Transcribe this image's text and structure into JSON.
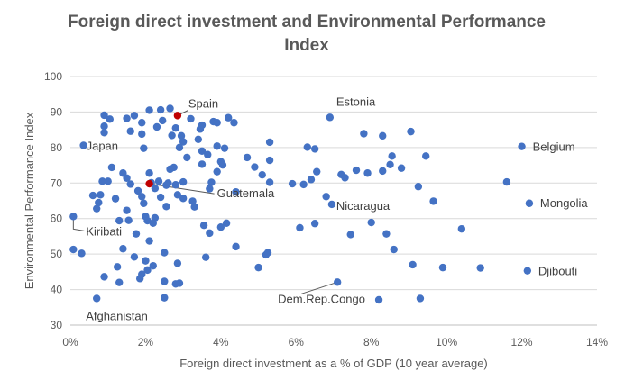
{
  "chart_data": {
    "type": "scatter",
    "title": "Foreign direct investment and Environmental Performance Index",
    "xlabel": "Foreign direct investment as a % of GDP (10 year average)",
    "ylabel": "Environmental Performance Index",
    "xlim": [
      0,
      14
    ],
    "ylim": [
      30,
      100
    ],
    "x_ticks": [
      "0%",
      "2%",
      "4%",
      "6%",
      "8%",
      "10%",
      "12%",
      "14%"
    ],
    "y_ticks": [
      "30",
      "40",
      "50",
      "60",
      "70",
      "80",
      "90",
      "100"
    ],
    "grid": "horizontal",
    "colors": {
      "points": "#4472c4",
      "highlight": "#c00000",
      "grid": "#d9d9d9",
      "text": "#595959"
    },
    "points": [
      [
        0.08,
        51.3
      ],
      [
        0.3,
        50.2
      ],
      [
        0.6,
        66.5
      ],
      [
        0.7,
        62.8
      ],
      [
        0.75,
        64.5
      ],
      [
        0.8,
        66.7
      ],
      [
        0.85,
        70.5
      ],
      [
        0.9,
        89.1
      ],
      [
        0.9,
        86.0
      ],
      [
        0.9,
        84.2
      ],
      [
        0.9,
        43.6
      ],
      [
        1.0,
        70.5
      ],
      [
        1.05,
        88.0
      ],
      [
        1.1,
        74.4
      ],
      [
        1.2,
        65.6
      ],
      [
        1.25,
        46.4
      ],
      [
        1.3,
        59.4
      ],
      [
        1.4,
        51.5
      ],
      [
        1.4,
        72.8
      ],
      [
        1.5,
        88.2
      ],
      [
        1.5,
        71.4
      ],
      [
        1.5,
        62.3
      ],
      [
        1.55,
        59.5
      ],
      [
        1.6,
        69.7
      ],
      [
        1.6,
        84.6
      ],
      [
        1.7,
        89.0
      ],
      [
        1.7,
        49.2
      ],
      [
        1.75,
        55.7
      ],
      [
        1.8,
        67.8
      ],
      [
        1.85,
        43.1
      ],
      [
        1.9,
        87.0
      ],
      [
        1.9,
        83.8
      ],
      [
        1.9,
        66.2
      ],
      [
        1.9,
        44.3
      ],
      [
        1.95,
        79.8
      ],
      [
        1.95,
        64.3
      ],
      [
        2.0,
        60.6
      ],
      [
        2.0,
        48.1
      ],
      [
        2.05,
        59.4
      ],
      [
        2.05,
        45.5
      ],
      [
        2.1,
        53.7
      ],
      [
        2.1,
        90.5
      ],
      [
        2.1,
        72.8
      ],
      [
        2.15,
        70.1
      ],
      [
        2.2,
        58.7
      ],
      [
        2.2,
        46.7
      ],
      [
        2.25,
        60.2
      ],
      [
        2.25,
        68.5
      ],
      [
        2.3,
        85.8
      ],
      [
        2.35,
        70.5
      ],
      [
        2.4,
        90.6
      ],
      [
        2.4,
        66.0
      ],
      [
        2.45,
        87.6
      ],
      [
        2.5,
        50.4
      ],
      [
        2.55,
        63.4
      ],
      [
        2.55,
        69.4
      ],
      [
        2.6,
        70.0
      ],
      [
        2.65,
        73.9
      ],
      [
        2.65,
        91.0
      ],
      [
        2.7,
        83.4
      ],
      [
        2.75,
        74.4
      ],
      [
        2.8,
        85.5
      ],
      [
        2.8,
        69.5
      ],
      [
        2.85,
        47.4
      ],
      [
        2.85,
        66.7
      ],
      [
        2.9,
        80.0
      ],
      [
        2.95,
        83.3
      ],
      [
        3.0,
        81.6
      ],
      [
        3.0,
        65.7
      ],
      [
        3.0,
        70.3
      ],
      [
        3.1,
        77.2
      ],
      [
        3.2,
        88.1
      ],
      [
        3.25,
        64.9
      ],
      [
        3.3,
        63.3
      ],
      [
        3.4,
        82.3
      ],
      [
        3.45,
        85.2
      ],
      [
        3.5,
        86.3
      ],
      [
        3.5,
        79.0
      ],
      [
        3.5,
        75.3
      ],
      [
        3.55,
        58.1
      ],
      [
        3.6,
        49.1
      ],
      [
        3.65,
        78.0
      ],
      [
        3.7,
        55.9
      ],
      [
        3.7,
        68.4
      ],
      [
        3.75,
        70.2
      ],
      [
        3.8,
        87.3
      ],
      [
        3.9,
        80.4
      ],
      [
        3.9,
        87.0
      ],
      [
        3.9,
        73.2
      ],
      [
        4.0,
        76.0
      ],
      [
        4.0,
        57.6
      ],
      [
        4.05,
        75.1
      ],
      [
        4.1,
        79.8
      ],
      [
        4.15,
        58.7
      ],
      [
        4.2,
        88.4
      ],
      [
        4.35,
        87.0
      ],
      [
        4.4,
        67.5
      ],
      [
        4.4,
        52.1
      ],
      [
        4.7,
        77.2
      ],
      [
        4.9,
        74.5
      ],
      [
        5.1,
        72.3
      ],
      [
        5.2,
        49.8
      ],
      [
        5.25,
        50.4
      ],
      [
        5.3,
        81.5
      ],
      [
        5.3,
        76.4
      ],
      [
        5.3,
        70.2
      ],
      [
        5.9,
        69.8
      ],
      [
        6.1,
        57.4
      ],
      [
        6.2,
        69.6
      ],
      [
        6.3,
        80.1
      ],
      [
        6.4,
        71.0
      ],
      [
        6.5,
        58.6
      ],
      [
        6.5,
        79.6
      ],
      [
        6.55,
        73.2
      ],
      [
        6.8,
        66.2
      ],
      [
        7.2,
        72.4
      ],
      [
        7.3,
        71.5
      ],
      [
        7.45,
        55.5
      ],
      [
        7.6,
        73.6
      ],
      [
        7.8,
        83.9
      ],
      [
        7.9,
        72.8
      ],
      [
        8.0,
        58.9
      ],
      [
        8.2,
        37.1
      ],
      [
        8.3,
        83.3
      ],
      [
        8.3,
        73.4
      ],
      [
        8.4,
        55.7
      ],
      [
        8.5,
        75.2
      ],
      [
        8.55,
        77.6
      ],
      [
        8.6,
        51.3
      ],
      [
        8.8,
        74.2
      ],
      [
        9.05,
        84.5
      ],
      [
        9.1,
        47.0
      ],
      [
        9.25,
        69.0
      ],
      [
        9.3,
        37.5
      ],
      [
        9.45,
        77.6
      ],
      [
        9.65,
        64.9
      ],
      [
        9.9,
        46.2
      ],
      [
        10.4,
        57.1
      ],
      [
        10.9,
        46.1
      ],
      [
        11.6,
        70.3
      ],
      [
        0.35,
        80.6
      ],
      [
        0.08,
        60.6
      ],
      [
        0.7,
        37.5
      ],
      [
        7.1,
        42.1
      ],
      [
        6.9,
        88.5
      ],
      [
        12.0,
        80.3
      ],
      [
        12.2,
        64.3
      ],
      [
        12.15,
        45.3
      ],
      [
        6.95,
        64.0
      ],
      [
        2.5,
        42.3
      ],
      [
        2.5,
        37.7
      ],
      [
        2.8,
        41.6
      ],
      [
        2.9,
        41.8
      ],
      [
        1.3,
        42.0
      ],
      [
        5.0,
        46.2
      ]
    ],
    "highlighted_points": [
      {
        "name": "Spain",
        "x": 2.85,
        "y": 89.0
      },
      {
        "name": "Guatemala",
        "x": 2.1,
        "y": 69.8
      }
    ],
    "annotations": [
      {
        "text": "Spain",
        "x": 2.85,
        "y": 89.0
      },
      {
        "text": "Japan",
        "x": 0.35,
        "y": 80.6
      },
      {
        "text": "Guatemala",
        "x": 2.1,
        "y": 69.8
      },
      {
        "text": "Kiribati",
        "x": 0.08,
        "y": 60.6
      },
      {
        "text": "Afghanistan",
        "x": 0.7,
        "y": 37.5
      },
      {
        "text": "Estonia",
        "x": 6.9,
        "y": 88.5
      },
      {
        "text": "Nicaragua",
        "x": 6.95,
        "y": 64.0
      },
      {
        "text": "Dem.Rep.Congo",
        "x": 7.1,
        "y": 42.1
      },
      {
        "text": "Belgium",
        "x": 12.0,
        "y": 80.3
      },
      {
        "text": "Mongolia",
        "x": 12.2,
        "y": 64.3
      },
      {
        "text": "Djibouti",
        "x": 12.15,
        "y": 45.3
      }
    ]
  }
}
